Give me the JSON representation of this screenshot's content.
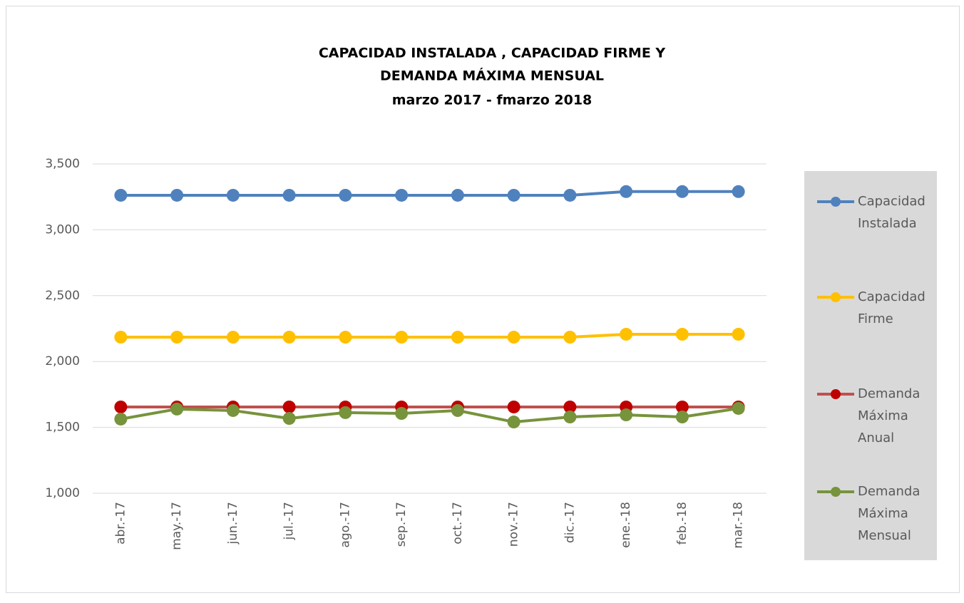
{
  "chart_data": {
    "type": "line",
    "title": [
      "CAPACIDAD  INSTALADA , CAPACIDAD  FIRME  Y",
      "DEMANDA  MÁXIMA  MENSUAL",
      "marzo   2017  -   fmarzo   2018"
    ],
    "categories": [
      "abr.-17",
      "may.-17",
      "jun.-17",
      "jul.-17",
      "ago.-17",
      "sep.-17",
      "oct.-17",
      "nov.-17",
      "dic.-17",
      "ene.-18",
      "feb.-18",
      "mar.-18"
    ],
    "series": [
      {
        "name": "Capacidad Instalada",
        "color": "#4f81bd",
        "values": [
          3262,
          3262,
          3262,
          3262,
          3262,
          3262,
          3262,
          3262,
          3262,
          3290,
          3290,
          3290
        ]
      },
      {
        "name": "Capacidad Firme",
        "color": "#ffc000",
        "values": [
          2185,
          2185,
          2185,
          2185,
          2185,
          2185,
          2185,
          2185,
          2185,
          2207,
          2207,
          2207
        ]
      },
      {
        "name": "Demanda Máxima Anual",
        "color": "#c0504d",
        "marker_color": "#c00000",
        "values": [
          1655,
          1655,
          1655,
          1655,
          1655,
          1655,
          1655,
          1655,
          1655,
          1655,
          1655,
          1655
        ]
      },
      {
        "name": "Demanda Máxima Mensual",
        "color": "#77933c",
        "values": [
          1563,
          1639,
          1628,
          1568,
          1612,
          1606,
          1628,
          1541,
          1579,
          1595,
          1579,
          1644
        ]
      }
    ],
    "ylim": [
      1000,
      3500
    ],
    "yticks": [
      {
        "value": 1000,
        "label": "1,000"
      },
      {
        "value": 1500,
        "label": "1,500"
      },
      {
        "value": 2000,
        "label": "2,000"
      },
      {
        "value": 2500,
        "label": "2,500"
      },
      {
        "value": 3000,
        "label": "3,000"
      },
      {
        "value": 3500,
        "label": "3,500"
      }
    ],
    "grid": true,
    "legend": "right"
  }
}
